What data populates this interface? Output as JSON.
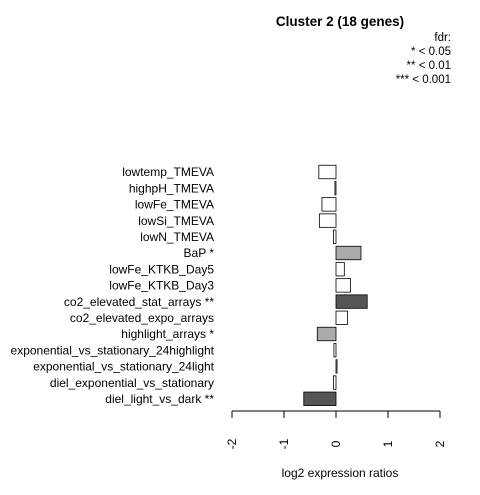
{
  "chart_data": {
    "type": "bar",
    "orientation": "horizontal",
    "title": "Cluster 2 (18 genes)",
    "xlabel": "log2 expression ratios",
    "xlim": [
      -2,
      2
    ],
    "xticks": [
      "-2",
      "-1",
      "0",
      "1",
      "2"
    ],
    "legend": {
      "placement": "top-right",
      "title": "fdr:",
      "entries": [
        "* < 0.05",
        "** < 0.01",
        "*** < 0.001"
      ]
    },
    "grid": false,
    "bars": [
      {
        "label": "lowtemp_TMEVA",
        "value": -0.33,
        "color": "#ffffff"
      },
      {
        "label": "highpH_TMEVA",
        "value": -0.02,
        "color": "#ffffff"
      },
      {
        "label": "lowFe_TMEVA",
        "value": -0.27,
        "color": "#ffffff"
      },
      {
        "label": "lowSi_TMEVA",
        "value": -0.32,
        "color": "#ffffff"
      },
      {
        "label": "lowN_TMEVA",
        "value": -0.05,
        "color": "#ffffff"
      },
      {
        "label": "BaP *",
        "value": 0.48,
        "color": "#aaaaaa"
      },
      {
        "label": "lowFe_KTKB_Day5",
        "value": 0.16,
        "color": "#ffffff"
      },
      {
        "label": "lowFe_KTKB_Day3",
        "value": 0.28,
        "color": "#ffffff"
      },
      {
        "label": "co2_elevated_stat_arrays **",
        "value": 0.6,
        "color": "#555555"
      },
      {
        "label": "co2_elevated_expo_arrays",
        "value": 0.22,
        "color": "#ffffff"
      },
      {
        "label": "highlight_arrays *",
        "value": -0.36,
        "color": "#aaaaaa"
      },
      {
        "label": "exponential_vs_stationary_24highlight",
        "value": -0.04,
        "color": "#ffffff"
      },
      {
        "label": "exponential_vs_stationary_24light",
        "value": 0.02,
        "color": "#ffffff"
      },
      {
        "label": "diel_exponential_vs_stationary",
        "value": -0.05,
        "color": "#ffffff"
      },
      {
        "label": "diel_light_vs_dark **",
        "value": -0.62,
        "color": "#555555"
      }
    ]
  }
}
